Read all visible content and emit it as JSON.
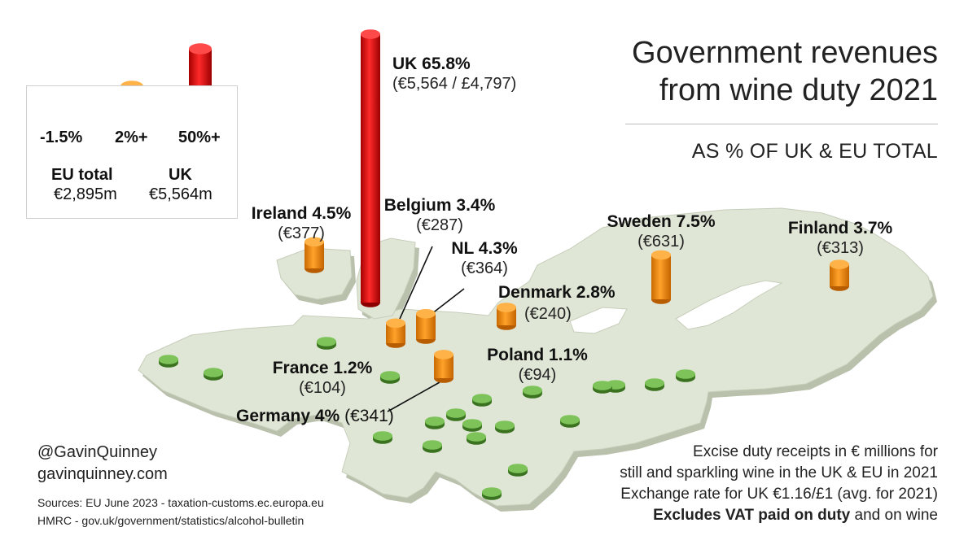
{
  "title_line1": "Government revenues",
  "title_line2": "from wine duty 2021",
  "subtitle": "AS % OF UK & EU TOTAL",
  "legend": {
    "items": [
      {
        "label": "-1.5%",
        "color": "#5a9a35"
      },
      {
        "label": "2%+",
        "color": "#ee8a00"
      },
      {
        "label": "50%+",
        "color": "#dd0c0c"
      }
    ],
    "eu_label": "EU total",
    "eu_value": "€2,895m",
    "uk_label": "UK",
    "uk_value": "€5,564m"
  },
  "chart_data": {
    "type": "bar",
    "title": "Government revenues from wine duty 2021",
    "subtitle": "AS % OF UK & EU TOTAL",
    "unit": "€ millions",
    "series": [
      {
        "label": "UK 65.8%",
        "value_text": "(€5,564 / £4,797)",
        "share": 65.8,
        "value": 5564,
        "tier": "50%+"
      },
      {
        "label": "Ireland 4.5%",
        "value_text": "(€377)",
        "share": 4.5,
        "value": 377,
        "tier": "2%+"
      },
      {
        "label": "Belgium 3.4%",
        "value_text": "(€287)",
        "share": 3.4,
        "value": 287,
        "tier": "2%+"
      },
      {
        "label": "NL 4.3%",
        "value_text": "(€364)",
        "share": 4.3,
        "value": 364,
        "tier": "2%+"
      },
      {
        "label": "Denmark 2.8%",
        "value_text": "(€240)",
        "share": 2.8,
        "value": 240,
        "tier": "2%+"
      },
      {
        "label": "Sweden 7.5%",
        "value_text": "(€631)",
        "share": 7.5,
        "value": 631,
        "tier": "2%+"
      },
      {
        "label": "Finland 3.7%",
        "value_text": "(€313)",
        "share": 3.7,
        "value": 313,
        "tier": "2%+"
      },
      {
        "label": "Germany 4%",
        "value_text": "(€341)",
        "share": 4,
        "value": 341,
        "tier": "2%+"
      },
      {
        "label": "France 1.2%",
        "value_text": "(€104)",
        "share": 1.2,
        "value": 104,
        "tier": "-1.5%"
      },
      {
        "label": "Poland 1.1%",
        "value_text": "(€94)",
        "share": 1.1,
        "value": 94,
        "tier": "-1.5%"
      }
    ],
    "small_markers": 18,
    "colors": {
      "small": "#5a9a35",
      "mid": "#ee8a00",
      "large": "#dd0c0c",
      "land": "#dfe6d6"
    }
  },
  "credit_handle": "@GavinQuinney",
  "credit_site": "gavinquinney.com",
  "source_line1": "Sources: EU June 2023 - taxation-customs.ec.europa.eu",
  "source_line2": "HMRC - gov.uk/government/statistics/alcohol-bulletin",
  "note_line1": "Excise duty receipts in € millions for",
  "note_line2": "still and sparkling wine in the UK & EU in 2021",
  "note_line3": "Exchange rate for UK €1.16/£1 (avg. for 2021)",
  "note_line4_bold": "Excludes VAT paid on duty",
  "note_line4_rest": " and on wine"
}
